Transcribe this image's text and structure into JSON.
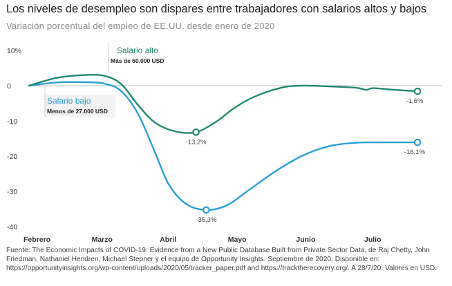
{
  "title": "Los niveles de desempleo son dispares entre trabajadores con salarios altos y bajos",
  "subtitle": "Variación porcentual del empleo de EE.UU. desde enero de 2020",
  "source": "Fuente: The Economic Impacts of COVID-19: Evidence from a New Public Database Built from Private Sector Data, de Raj Chetty, John Friedman, Nathaniel Hendren, Michael Stepner y el equipo de Opportunity Insights. Septiembre de 2020. Disponible en: https://opportunityinsights.org/wp-content/uploads/2020/05/tracker_paper.pdf and https://tracktherecovery.org/. A 28/7/20. Valores en USD.",
  "chart_data": {
    "type": "line",
    "title": "Los niveles de desempleo son dispares entre trabajadores con salarios altos y bajos",
    "subtitle": "Variación porcentual del empleo de EE.UU. desde enero de 2020",
    "xlabel": "",
    "ylabel": "",
    "ylim": [
      -40,
      10
    ],
    "xlim": [
      0,
      5.8
    ],
    "yticks": [
      10,
      0,
      -10,
      -20,
      -30,
      -40
    ],
    "ytick_labels": [
      "10%",
      "0",
      "-10",
      "-20",
      "-30",
      "-40"
    ],
    "xticks": [
      0,
      1,
      2,
      3,
      4,
      5
    ],
    "xtick_labels": [
      "Febrero",
      "Marzo",
      "Abril",
      "Mayo",
      "Junio",
      "Julio"
    ],
    "grid": false,
    "series": [
      {
        "name": "Salario alto",
        "sublabel": "Más de 60.000 USD",
        "color": "#1f8a70",
        "x": [
          0,
          0.4,
          0.8,
          1.1,
          1.35,
          1.6,
          1.85,
          2.15,
          2.45,
          2.75,
          3.0,
          3.3,
          3.7,
          4.0,
          4.4,
          4.8,
          4.95,
          5.05,
          5.3,
          5.7
        ],
        "y": [
          0,
          2.2,
          3.0,
          2.8,
          0.5,
          -5.5,
          -10.5,
          -13.0,
          -13.2,
          -10.2,
          -6.5,
          -3.2,
          -0.6,
          0.0,
          -0.2,
          -0.6,
          -1.2,
          -0.7,
          -1.1,
          -1.6
        ],
        "markers": [
          {
            "x": 2.45,
            "y": -13.2,
            "label": "-13,2%"
          },
          {
            "x": 5.7,
            "y": -1.6,
            "label": "-1,6%"
          }
        ]
      },
      {
        "name": "Salario bajo",
        "sublabel": "Menos de 27.000 USD",
        "color": "#2a9fd6",
        "x": [
          0,
          0.4,
          0.8,
          1.1,
          1.35,
          1.6,
          1.85,
          2.05,
          2.3,
          2.6,
          2.9,
          3.2,
          3.6,
          4.0,
          4.4,
          4.8,
          5.2,
          5.7
        ],
        "y": [
          0,
          0.9,
          1.0,
          0.6,
          -1.5,
          -8.0,
          -19.0,
          -28.0,
          -33.5,
          -35.3,
          -34.0,
          -30.0,
          -24.5,
          -20.0,
          -17.2,
          -16.2,
          -16.1,
          -16.1
        ],
        "markers": [
          {
            "x": 2.6,
            "y": -35.3,
            "label": "-35,3%"
          },
          {
            "x": 5.7,
            "y": -16.1,
            "label": "-16,1%"
          }
        ]
      }
    ]
  }
}
